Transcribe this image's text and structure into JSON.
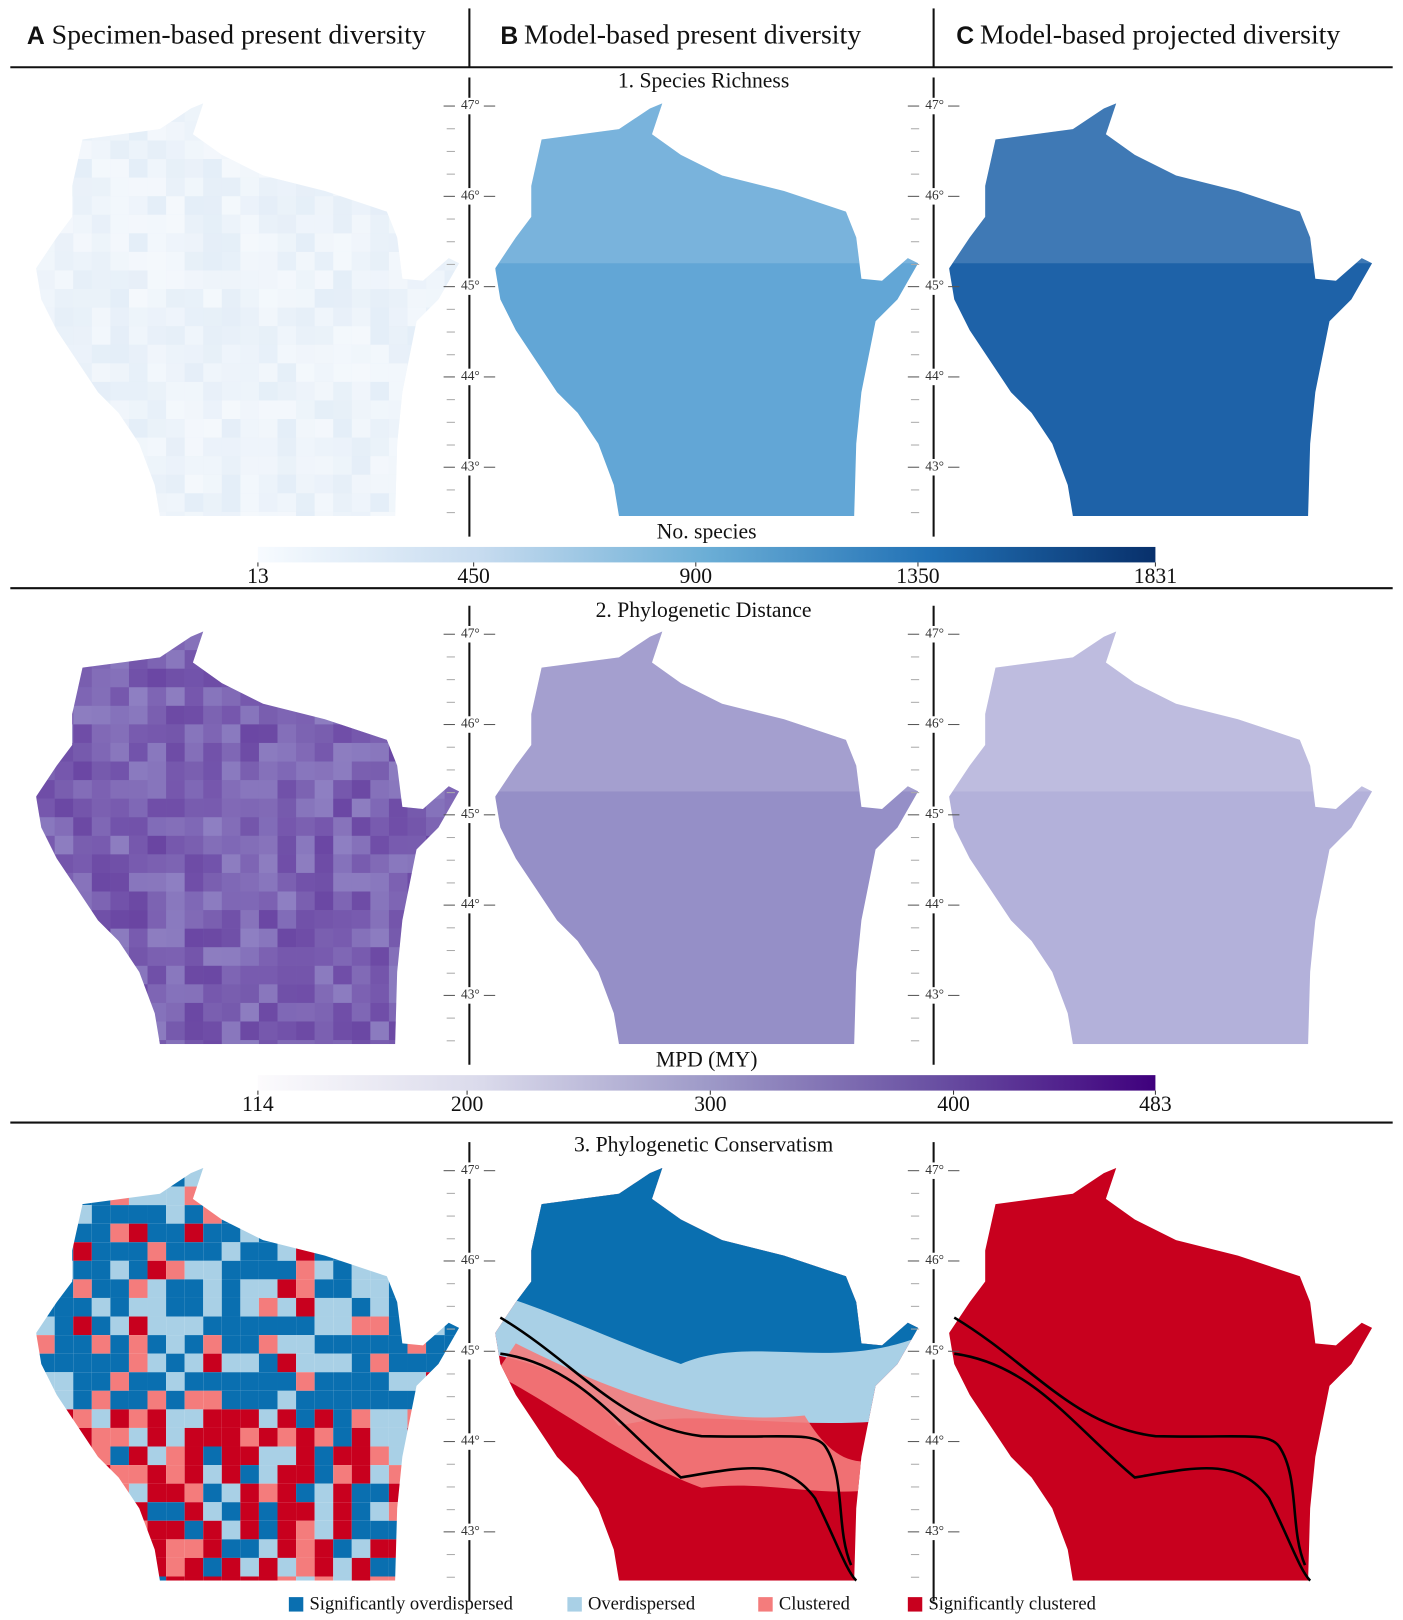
{
  "columns": [
    {
      "letter": "A",
      "title": "Specimen-based present diversity"
    },
    {
      "letter": "B",
      "title": "Model-based present diversity"
    },
    {
      "letter": "C",
      "title": "Model-based projected diversity"
    }
  ],
  "rows": [
    {
      "title": "1. Species Richness",
      "colorbar": {
        "label": "No. species",
        "lim": [
          13,
          1831
        ],
        "ticks": [
          13,
          450,
          900,
          1350,
          1831
        ],
        "colors": [
          "#f7fbff",
          "#c6dbef",
          "#6baed6",
          "#2171b5",
          "#08306b"
        ]
      },
      "map_colors": [
        "#e4eef8",
        "#62a6d6",
        "#1e62a8"
      ]
    },
    {
      "title": "2. Phylogenetic Distance",
      "colorbar": {
        "label": "MPD (MY)",
        "lim": [
          114,
          483
        ],
        "ticks": [
          114,
          200,
          300,
          400,
          483
        ],
        "colors": [
          "#fcfbfd",
          "#dadaeb",
          "#9e9ac8",
          "#6a51a3",
          "#3f007d"
        ]
      },
      "map_colors": [
        "#8e7fc2",
        "#958fc7",
        "#b3b1da"
      ]
    },
    {
      "title": "3. Phylogenetic Conservatism",
      "legend": [
        {
          "name": "Significantly overdispersed",
          "color": "#0a6fb0"
        },
        {
          "name": "Overdispersed",
          "color": "#a9d0e6"
        },
        {
          "name": "Clustered",
          "color": "#f47c7c"
        },
        {
          "name": "Significantly clustered",
          "color": "#c8001e"
        }
      ]
    }
  ],
  "latitude_lim": [
    42.46,
    47.03
  ],
  "latitude_ticks": [
    {
      "value": 47,
      "label": "47°"
    },
    {
      "value": 46,
      "label": "46°"
    },
    {
      "value": 45,
      "label": "45°"
    },
    {
      "value": 44,
      "label": "44°"
    },
    {
      "value": 43,
      "label": "43°"
    }
  ]
}
